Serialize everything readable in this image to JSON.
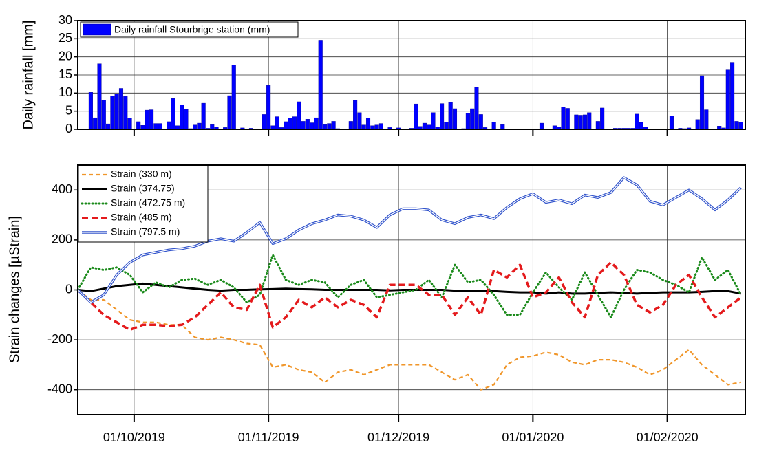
{
  "chart_data": [
    {
      "type": "bar",
      "y_label": "Daily rainfall [mm]",
      "xlim": [
        "18/09/2019",
        "19/02/2020"
      ],
      "ylim": [
        0,
        30
      ],
      "yticks": [
        0,
        5,
        10,
        15,
        20,
        25,
        30
      ],
      "grid": true,
      "legend": "top-left",
      "x": [
        "18/09/2019",
        "19/09/2019",
        "20/09/2019",
        "21/09/2019",
        "22/09/2019",
        "23/09/2019",
        "24/09/2019",
        "25/09/2019",
        "26/09/2019",
        "27/09/2019",
        "28/09/2019",
        "29/09/2019",
        "30/09/2019",
        "01/10/2019",
        "02/10/2019",
        "03/10/2019",
        "04/10/2019",
        "05/10/2019",
        "06/10/2019",
        "07/10/2019",
        "08/10/2019",
        "09/10/2019",
        "10/10/2019",
        "11/10/2019",
        "12/10/2019",
        "13/10/2019",
        "14/10/2019",
        "15/10/2019",
        "16/10/2019",
        "17/10/2019",
        "18/10/2019",
        "19/10/2019",
        "20/10/2019",
        "21/10/2019",
        "22/10/2019",
        "23/10/2019",
        "24/10/2019",
        "25/10/2019",
        "26/10/2019",
        "27/10/2019",
        "28/10/2019",
        "29/10/2019",
        "30/10/2019",
        "31/10/2019",
        "01/11/2019",
        "02/11/2019",
        "03/11/2019",
        "04/11/2019",
        "05/11/2019",
        "06/11/2019",
        "07/11/2019",
        "08/11/2019",
        "09/11/2019",
        "10/11/2019",
        "11/11/2019",
        "12/11/2019",
        "13/11/2019",
        "14/11/2019",
        "15/11/2019",
        "16/11/2019",
        "17/11/2019",
        "18/11/2019",
        "19/11/2019",
        "20/11/2019",
        "21/11/2019",
        "22/11/2019",
        "23/11/2019",
        "24/11/2019",
        "25/11/2019",
        "26/11/2019",
        "27/11/2019",
        "28/11/2019",
        "29/11/2019",
        "30/11/2019",
        "01/12/2019",
        "02/12/2019",
        "03/12/2019",
        "04/12/2019",
        "05/12/2019",
        "06/12/2019",
        "07/12/2019",
        "08/12/2019",
        "09/12/2019",
        "10/12/2019",
        "11/12/2019",
        "12/12/2019",
        "13/12/2019",
        "14/12/2019",
        "15/12/2019",
        "16/12/2019",
        "17/12/2019",
        "18/12/2019",
        "19/12/2019",
        "20/12/2019",
        "21/12/2019",
        "22/12/2019",
        "23/12/2019",
        "24/12/2019",
        "25/12/2019",
        "26/12/2019",
        "27/12/2019",
        "28/12/2019",
        "29/12/2019",
        "30/12/2019",
        "31/12/2019",
        "01/01/2020",
        "02/01/2020",
        "03/01/2020",
        "04/01/2020",
        "05/01/2020",
        "06/01/2020",
        "07/01/2020",
        "08/01/2020",
        "09/01/2020",
        "10/01/2020",
        "11/01/2020",
        "12/01/2020",
        "13/01/2020",
        "14/01/2020",
        "15/01/2020",
        "16/01/2020",
        "17/01/2020",
        "18/01/2020",
        "19/01/2020",
        "20/01/2020",
        "21/01/2020",
        "22/01/2020",
        "23/01/2020",
        "24/01/2020",
        "25/01/2020",
        "26/01/2020",
        "27/01/2020",
        "28/01/2020",
        "29/01/2020",
        "30/01/2020",
        "31/01/2020",
        "01/02/2020",
        "02/02/2020",
        "03/02/2020",
        "04/02/2020",
        "05/02/2020",
        "06/02/2020",
        "07/02/2020",
        "08/02/2020",
        "09/02/2020",
        "10/02/2020",
        "11/02/2020",
        "12/02/2020",
        "13/02/2020",
        "14/02/2020",
        "15/02/2020",
        "16/02/2020",
        "17/02/2020",
        "18/02/2020",
        "19/02/2020"
      ],
      "series": [
        {
          "name": "Daily rainfall Stourbrige station (mm)",
          "color": "#0000ff",
          "values": [
            0,
            0,
            0,
            10.2,
            3.2,
            18.1,
            8.0,
            1.5,
            9.2,
            9.8,
            11.3,
            9.1,
            3.1,
            0,
            2.1,
            1.1,
            5.3,
            5.4,
            1.6,
            1.6,
            0,
            2.1,
            8.5,
            1.0,
            6.8,
            5.5,
            0.2,
            1.2,
            1.7,
            7.2,
            0.3,
            1.3,
            0.6,
            0,
            0.5,
            9.3,
            17.8,
            0,
            0.4,
            0,
            0.3,
            0,
            0,
            4.1,
            12.1,
            1.0,
            3.5,
            0.5,
            2.1,
            3.1,
            3.5,
            7.6,
            2.2,
            2.8,
            1.8,
            3.2,
            24.6,
            1.3,
            1.6,
            2.2,
            0.2,
            0,
            0,
            2.2,
            8.0,
            4.6,
            1.2,
            3.1,
            1.0,
            1.2,
            1.6,
            0,
            0.5,
            0,
            0.4,
            0,
            0,
            0.3,
            7.0,
            0.8,
            1.7,
            1.2,
            4.6,
            0.6,
            7.1,
            2.0,
            7.4,
            5.7,
            0,
            0.2,
            4.4,
            5.7,
            11.6,
            4.1,
            0.5,
            0,
            2.0,
            0,
            1.3,
            0,
            0.1,
            0.1,
            0.1,
            0.1,
            0.1,
            0,
            0,
            1.7,
            0,
            0,
            1.0,
            0.6,
            6.1,
            5.8,
            0.1,
            4.0,
            3.9,
            4.0,
            4.6,
            0.1,
            2.2,
            5.9,
            0,
            0,
            0.3,
            0.3,
            0.3,
            0.3,
            0.3,
            4.2,
            1.9,
            0.6,
            0,
            0,
            0,
            0,
            0,
            3.7,
            0,
            0.3,
            0.2,
            0.4,
            0,
            2.7,
            14.8,
            5.4,
            0,
            0,
            0.9,
            0.4,
            16.4,
            18.5,
            2.2,
            2.0,
            0
          ]
        }
      ]
    },
    {
      "type": "line",
      "y_label": "Strain changes [µStrain]",
      "xlim": [
        "18/09/2019",
        "19/02/2020"
      ],
      "xticks": [
        "01/10/2019",
        "01/11/2019",
        "01/12/2019",
        "01/01/2020",
        "01/02/2020"
      ],
      "ylim": [
        -500,
        500
      ],
      "yticks": [
        -400,
        -200,
        0,
        200,
        400
      ],
      "grid": true,
      "legend": "top-left",
      "x": [
        "18/09/2019",
        "21/09/2019",
        "24/09/2019",
        "27/09/2019",
        "30/09/2019",
        "03/10/2019",
        "06/10/2019",
        "09/10/2019",
        "12/10/2019",
        "15/10/2019",
        "18/10/2019",
        "21/10/2019",
        "24/10/2019",
        "27/10/2019",
        "30/10/2019",
        "02/11/2019",
        "05/11/2019",
        "08/11/2019",
        "11/11/2019",
        "14/11/2019",
        "17/11/2019",
        "20/11/2019",
        "23/11/2019",
        "26/11/2019",
        "29/11/2019",
        "02/12/2019",
        "05/12/2019",
        "08/12/2019",
        "11/12/2019",
        "14/12/2019",
        "17/12/2019",
        "20/12/2019",
        "23/12/2019",
        "26/12/2019",
        "29/12/2019",
        "01/01/2020",
        "04/01/2020",
        "07/01/2020",
        "10/01/2020",
        "13/01/2020",
        "16/01/2020",
        "19/01/2020",
        "22/01/2020",
        "25/01/2020",
        "28/01/2020",
        "31/01/2020",
        "03/02/2020",
        "06/02/2020",
        "09/02/2020",
        "12/02/2020",
        "15/02/2020",
        "18/02/2020"
      ],
      "series": [
        {
          "name": "Strain (330 m)",
          "color": "#f0962a",
          "style": "dashed",
          "values": [
            0,
            -40,
            -40,
            -80,
            -120,
            -130,
            -130,
            -140,
            -140,
            -190,
            -200,
            -190,
            -200,
            -215,
            -220,
            -310,
            -300,
            -320,
            -330,
            -370,
            -330,
            -320,
            -340,
            -320,
            -300,
            -300,
            -300,
            -300,
            -330,
            -360,
            -340,
            -400,
            -380,
            -300,
            -270,
            -265,
            -250,
            -260,
            -290,
            -300,
            -280,
            -280,
            -290,
            -310,
            -340,
            -320,
            -280,
            -240,
            -300,
            -340,
            -380,
            -370
          ]
        },
        {
          "name": "Strain (374.75)",
          "color": "#000000",
          "style": "solid",
          "values": [
            0,
            -5,
            5,
            15,
            20,
            25,
            20,
            15,
            10,
            5,
            0,
            -3,
            0,
            0,
            2,
            3,
            5,
            3,
            2,
            0,
            0,
            0,
            0,
            0,
            -2,
            0,
            0,
            0,
            0,
            -3,
            -5,
            -5,
            -5,
            -8,
            -10,
            -10,
            -15,
            -10,
            -15,
            -15,
            -12,
            -10,
            -12,
            -15,
            -12,
            -10,
            -10,
            -10,
            -8,
            -5,
            -5,
            -15
          ]
        },
        {
          "name": "Strain (472.75 m)",
          "color": "#1a8a1a",
          "style": "dotted",
          "values": [
            0,
            90,
            80,
            90,
            60,
            -10,
            30,
            10,
            40,
            45,
            20,
            40,
            10,
            -50,
            -20,
            140,
            40,
            20,
            40,
            30,
            -30,
            20,
            40,
            -30,
            -20,
            -10,
            0,
            40,
            -30,
            100,
            30,
            40,
            -20,
            -100,
            -100,
            -10,
            70,
            10,
            -40,
            70,
            -20,
            -110,
            0,
            80,
            70,
            40,
            20,
            -10,
            130,
            40,
            80,
            -20
          ]
        },
        {
          "name": "Strain (485 m)",
          "color": "#e41a1c",
          "style": "dashed-bold",
          "values": [
            0,
            -50,
            -100,
            -130,
            -160,
            -140,
            -140,
            -145,
            -140,
            -110,
            -60,
            -10,
            -70,
            -80,
            20,
            -150,
            -110,
            -40,
            -70,
            -30,
            -70,
            -40,
            -60,
            -110,
            20,
            20,
            20,
            -20,
            -20,
            -100,
            -30,
            -100,
            80,
            50,
            100,
            -30,
            -10,
            50,
            -50,
            -110,
            60,
            110,
            60,
            -60,
            -90,
            -60,
            20,
            60,
            -30,
            -110,
            -70,
            -30
          ]
        },
        {
          "name": "Strain (797.5 m)",
          "color": "#3355cc",
          "style": "double",
          "values": [
            0,
            -50,
            -20,
            60,
            110,
            140,
            150,
            160,
            165,
            175,
            195,
            205,
            195,
            230,
            270,
            185,
            205,
            240,
            265,
            280,
            300,
            295,
            280,
            250,
            300,
            325,
            325,
            320,
            280,
            265,
            290,
            300,
            285,
            330,
            365,
            385,
            350,
            360,
            345,
            380,
            370,
            390,
            450,
            420,
            355,
            340,
            370,
            400,
            365,
            320,
            360,
            410
          ]
        }
      ]
    }
  ]
}
